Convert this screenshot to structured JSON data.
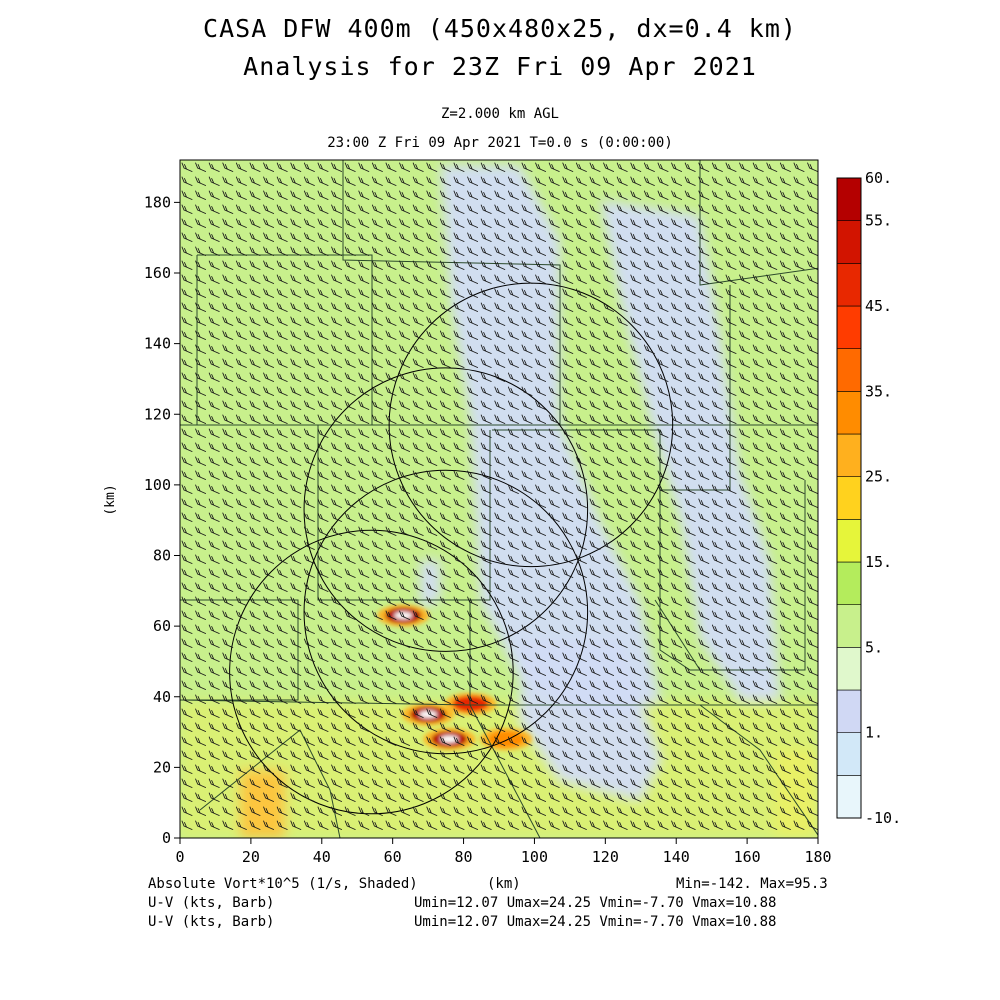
{
  "title_line1": "CASA DFW 400m (450x480x25, dx=0.4 km)",
  "title_line2": "Analysis for 23Z Fri 09 Apr 2021",
  "subtitle_level": "Z=2.000 km AGL",
  "subtitle_time": "23:00 Z Fri 09 Apr 2021   T=0.0 s (0:00:00)",
  "footer": {
    "shaded_label": "Absolute Vort*10^5 (1/s, Shaded)",
    "xunit": "(km)",
    "minmax": "Min=-142. Max=95.3",
    "barb_label_1": "U-V (kts, Barb)",
    "barb_stats_1": "Umin=12.07 Umax=24.25 Vmin=-7.70 Vmax=10.88",
    "barb_label_2": "U-V (kts, Barb)",
    "barb_stats_2": "Umin=12.07 Umax=24.25 Vmin=-7.70 Vmax=10.88"
  },
  "colors": {
    "background_field": "#c8f08c",
    "low_field": "#d2dcf5",
    "barb": "#1a1a1a",
    "boundary": "#2b4a2b"
  },
  "chart_data": {
    "type": "heatmap",
    "field": "Absolute Vort*10^5 (1/s)",
    "xlabel": "(km)",
    "ylabel": "(km)",
    "xlim": [
      0,
      180
    ],
    "ylim": [
      0,
      192
    ],
    "xticks": [
      "0",
      "20",
      "40",
      "60",
      "80",
      "100",
      "120",
      "140",
      "160",
      "180"
    ],
    "yticks": [
      "0",
      "20",
      "40",
      "60",
      "80",
      "100",
      "120",
      "140",
      "160",
      "180"
    ],
    "colorbar": {
      "levels": [
        -10,
        -5,
        1,
        3,
        5,
        10,
        15,
        20,
        25,
        30,
        35,
        40,
        45,
        50,
        55,
        60
      ],
      "labels": [
        {
          "text": "-10.",
          "value": -10
        },
        {
          "text": "1.",
          "value": 1
        },
        {
          "text": "5.",
          "value": 5
        },
        {
          "text": "15.",
          "value": 15
        },
        {
          "text": "25.",
          "value": 25
        },
        {
          "text": "35.",
          "value": 35
        },
        {
          "text": "45.",
          "value": 45
        },
        {
          "text": "55.",
          "value": 55
        },
        {
          "text": "60.",
          "value": 60
        }
      ],
      "colors": [
        "#e8f6fb",
        "#d2e8f8",
        "#d0d8f4",
        "#e0f8cc",
        "#c8f08c",
        "#b4ec5c",
        "#e6f53a",
        "#ffd21e",
        "#ffb01e",
        "#ff8c00",
        "#ff6a00",
        "#ff3c00",
        "#e82800",
        "#d21400",
        "#b40000"
      ]
    },
    "radar_circles_km": [
      {
        "x": 54,
        "y": 47,
        "r": 40
      },
      {
        "x": 75,
        "y": 64,
        "r": 40
      },
      {
        "x": 75,
        "y": 93,
        "r": 40
      },
      {
        "x": 99,
        "y": 117,
        "r": 40
      }
    ],
    "vorticity_features": [
      {
        "x": 63,
        "y": 63,
        "peak": 60
      },
      {
        "x": 70,
        "y": 35,
        "peak": 60
      },
      {
        "x": 82,
        "y": 38,
        "peak": 45
      },
      {
        "x": 76,
        "y": 28,
        "peak": 55
      },
      {
        "x": 92,
        "y": 28,
        "peak": 30
      }
    ],
    "wind_barbs": {
      "units": "kts",
      "u_range": [
        12.07,
        24.25
      ],
      "v_range": [
        -7.7,
        10.88
      ]
    }
  }
}
